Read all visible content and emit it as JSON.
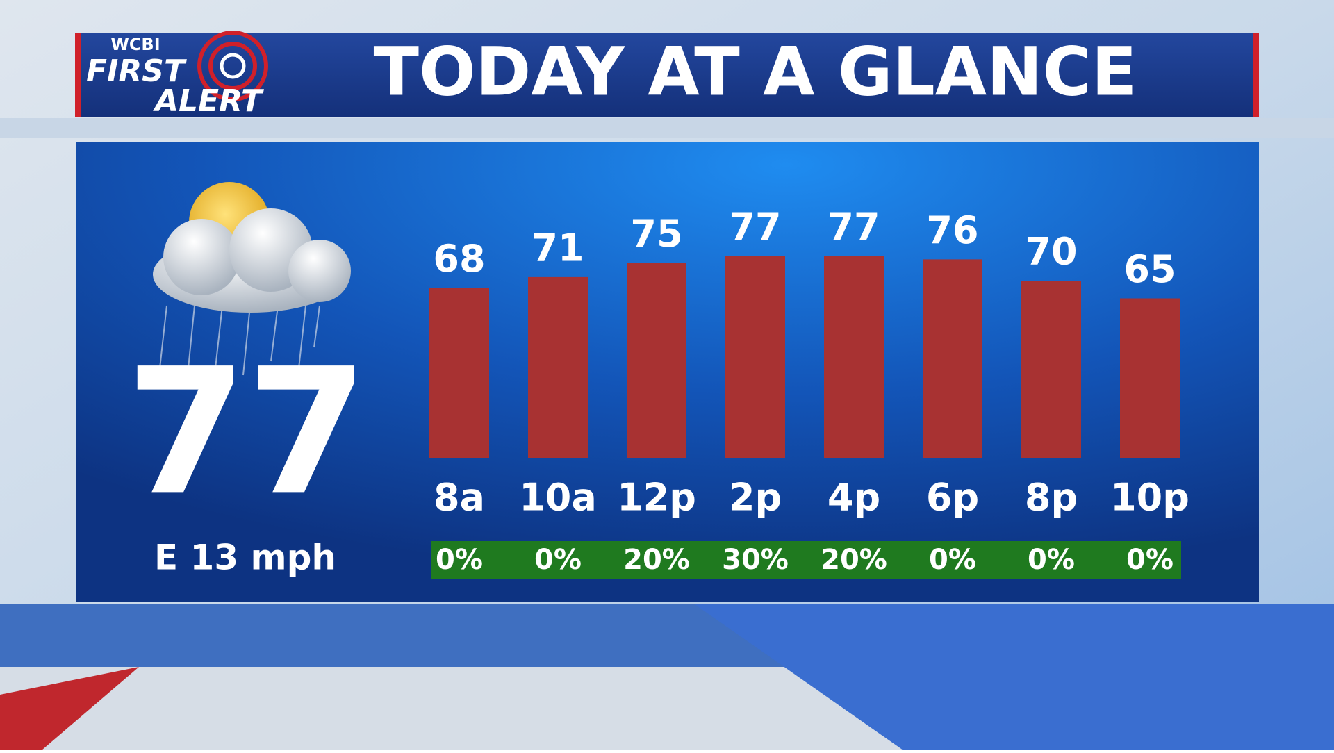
{
  "header": {
    "logo": [
      "WCBI",
      "FIRST",
      "ALERT"
    ],
    "title": "TODAY AT A GLANCE"
  },
  "current": {
    "temperature": 77,
    "wind": "E 13 mph"
  },
  "chart_data": {
    "type": "bar",
    "categories": [
      "8a",
      "10a",
      "12p",
      "2p",
      "4p",
      "6p",
      "8p",
      "10p"
    ],
    "values": [
      68,
      71,
      75,
      77,
      77,
      76,
      70,
      65
    ],
    "color": "#a83232",
    "ylim": [
      20,
      80
    ],
    "precipitation_chance": [
      "0%",
      "0%",
      "20%",
      "30%",
      "20%",
      "0%",
      "0%",
      "0%"
    ],
    "precipitation_color": "#1f7a1f"
  }
}
